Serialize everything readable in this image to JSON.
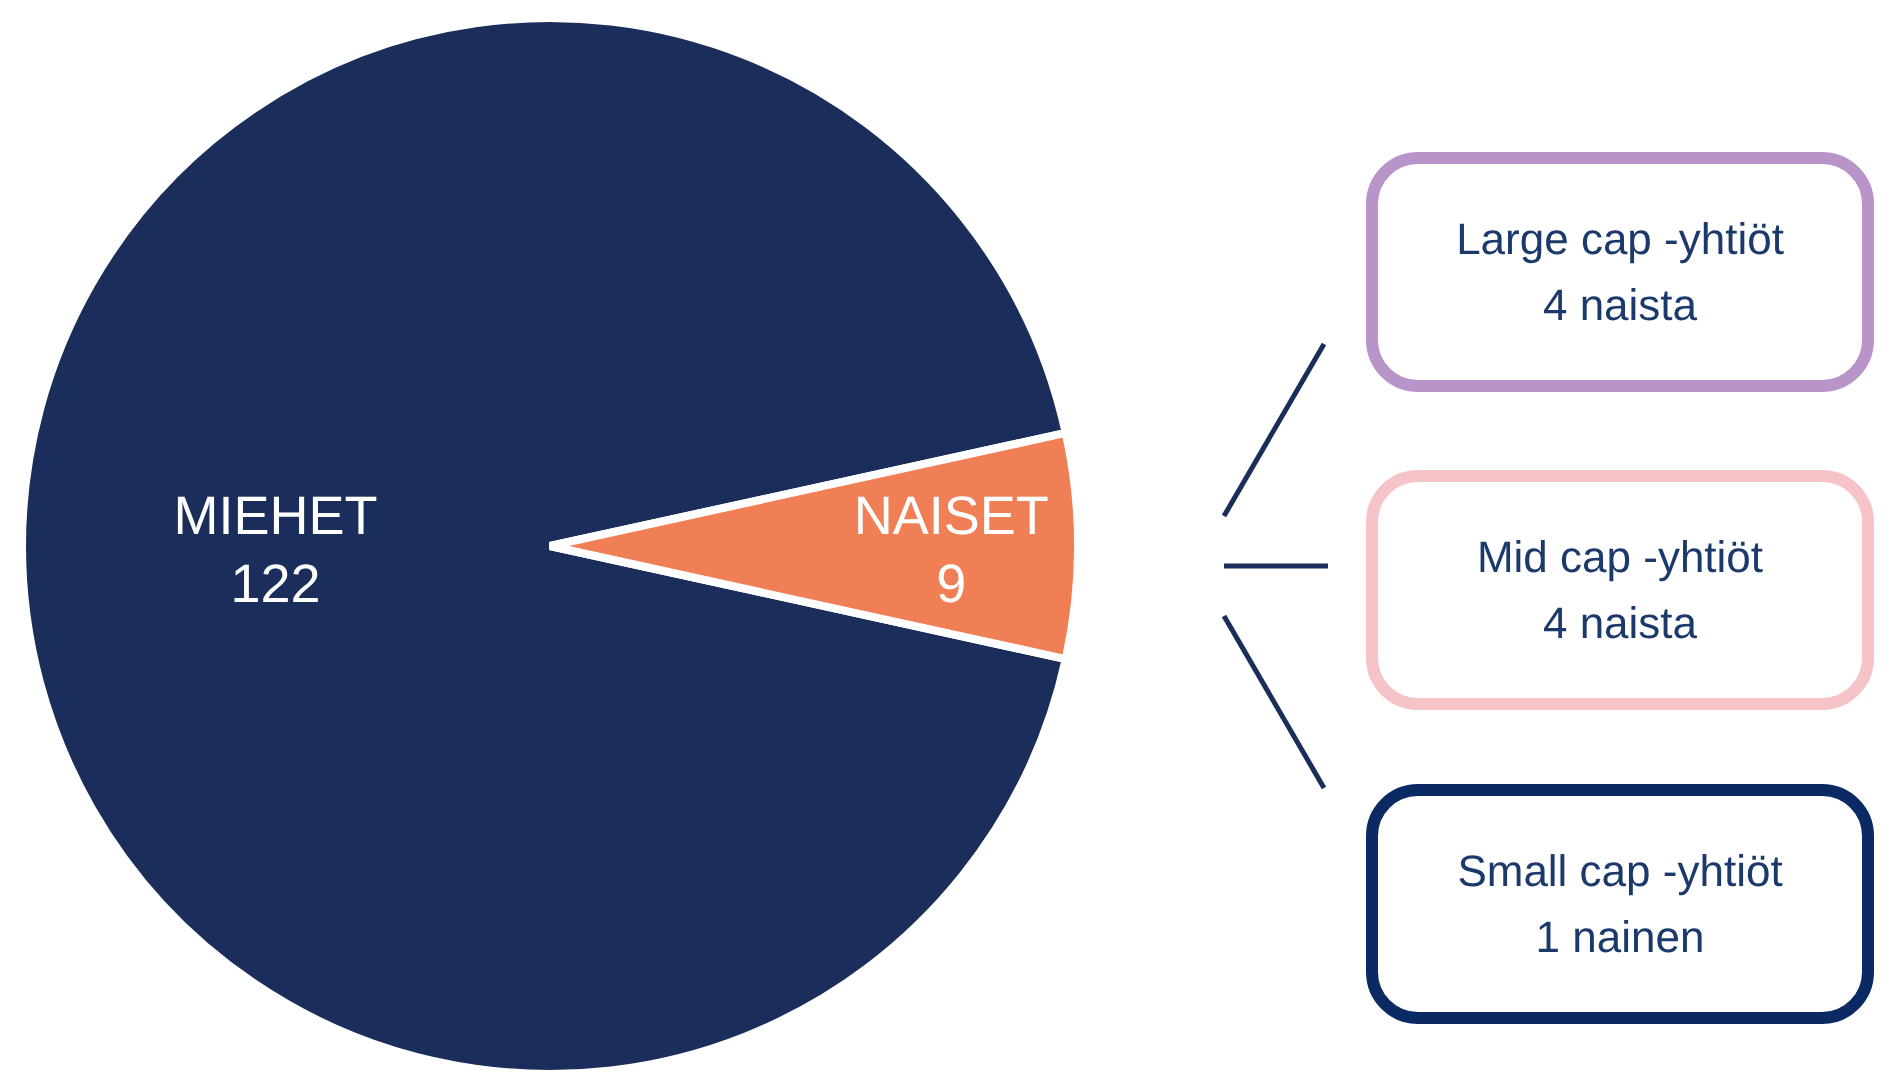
{
  "chart_data": {
    "type": "pie",
    "categories": [
      "MIEHET",
      "NAISET"
    ],
    "values": [
      122,
      9
    ],
    "colors": [
      "#1b2d5b",
      "#f07f56"
    ],
    "data_labels": true,
    "annotations": [
      "Large cap -yhtiöt\n4 naista",
      "Mid cap -yhtiöt\n4 naista",
      "Small cap -yhtiöt\n1 nainen"
    ]
  }
}
